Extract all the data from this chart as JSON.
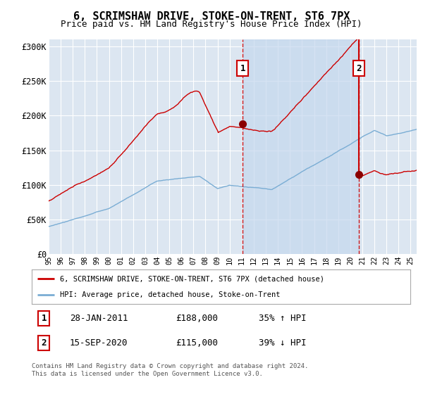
{
  "title": "6, SCRIMSHAW DRIVE, STOKE-ON-TRENT, ST6 7PX",
  "subtitle": "Price paid vs. HM Land Registry's House Price Index (HPI)",
  "background_color": "#ffffff",
  "plot_bg_color": "#dce6f1",
  "shade_color": "#c5d8ee",
  "ylabel_ticks": [
    "£0",
    "£50K",
    "£100K",
    "£150K",
    "£200K",
    "£250K",
    "£300K"
  ],
  "ytick_values": [
    0,
    50000,
    100000,
    150000,
    200000,
    250000,
    300000
  ],
  "ylim": [
    0,
    310000
  ],
  "xlim_start": 1995.0,
  "xlim_end": 2025.5,
  "sale1_date": 2011.08,
  "sale1_label": "1",
  "sale1_price": 188000,
  "sale1_text": "28-JAN-2011",
  "sale1_pct": "35% ↑ HPI",
  "sale2_date": 2020.71,
  "sale2_label": "2",
  "sale2_price": 115000,
  "sale2_text": "15-SEP-2020",
  "sale2_pct": "39% ↓ HPI",
  "legend_line1": "6, SCRIMSHAW DRIVE, STOKE-ON-TRENT, ST6 7PX (detached house)",
  "legend_line2": "HPI: Average price, detached house, Stoke-on-Trent",
  "footer": "Contains HM Land Registry data © Crown copyright and database right 2024.\nThis data is licensed under the Open Government Licence v3.0.",
  "hpi_color": "#7aadd4",
  "sale_color": "#cc0000",
  "dashed_color": "#cc0000",
  "marker_color": "#8b0000"
}
